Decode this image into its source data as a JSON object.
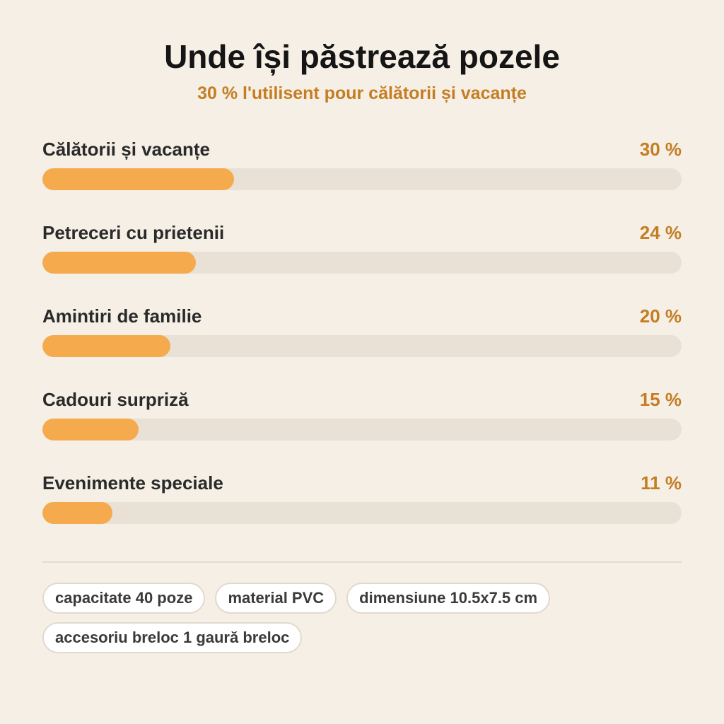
{
  "header": {
    "title": "Unde își păstrează pozele",
    "subtitle": "30 % l'utilisent pour călătorii și vacanțe"
  },
  "chart_data": {
    "type": "bar",
    "orientation": "horizontal",
    "categories": [
      "Călătorii și vacanțe",
      "Petreceri cu prietenii",
      "Amintiri de familie",
      "Cadouri surpriză",
      "Evenimente speciale"
    ],
    "values": [
      30,
      24,
      20,
      15,
      11
    ],
    "value_labels": [
      "30 %",
      "24 %",
      "20 %",
      "15 %",
      "11 %"
    ],
    "xlim": [
      0,
      100
    ],
    "unit": "%",
    "grid": false,
    "colors": {
      "fill": "#f5aa4e",
      "track": "#e9e1d6",
      "value_text": "#c57d22"
    }
  },
  "tags": [
    "capacitate 40 poze",
    "material PVC",
    "dimensiune 10.5x7.5 cm",
    "accesoriu breloc 1 gaură breloc"
  ]
}
